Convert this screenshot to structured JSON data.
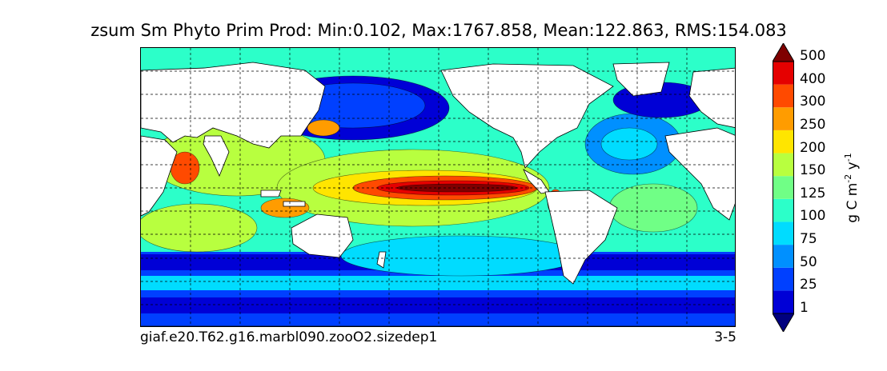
{
  "chart_data": {
    "type": "heatmap",
    "title": "zsum Sm Phyto Prim Prod: Min:0.102, Max:1767.858, Mean:122.863, RMS:154.083",
    "caption_left": "giaf.e20.T62.g16.marbl090.zooO2.sizedep1",
    "caption_right": "3-5",
    "colorbar": {
      "label_main": "g C m",
      "label_exp1": "-2",
      "label_mid": " y",
      "label_exp2": "-1",
      "levels": [
        "1",
        "25",
        "50",
        "75",
        "100",
        "125",
        "150",
        "200",
        "250",
        "300",
        "400",
        "500"
      ],
      "colors": [
        "#00007f",
        "#0000d6",
        "#0040ff",
        "#0090ff",
        "#00dcff",
        "#2cffc9",
        "#70ff86",
        "#b8ff3f",
        "#ffe500",
        "#ff9c00",
        "#ff4a00",
        "#e50000",
        "#7f0000"
      ],
      "extend": "both"
    },
    "grid": true,
    "land_color": "#ffffff"
  }
}
